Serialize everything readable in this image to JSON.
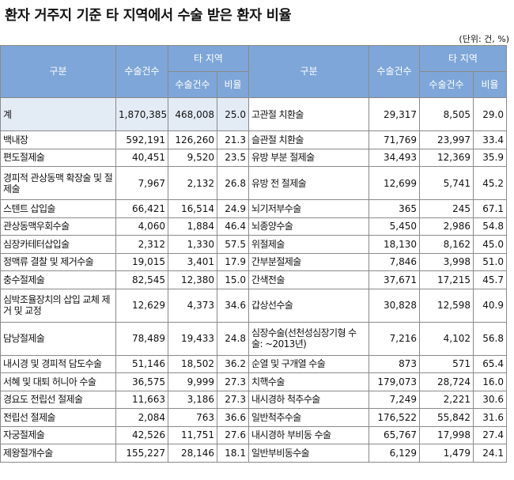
{
  "title": "환자 거주지 기준 타 지역에서 수술 받은 환자 비율",
  "unit": "(단위: 건, %)",
  "headers": {
    "category": "구분",
    "count": "수술건수",
    "other_region_top": "타 지역",
    "other_region_bottom": "수술건수",
    "ratio": "비율"
  },
  "left_rows": [
    {
      "name": "계",
      "count": "1,870,385",
      "other": "468,008",
      "ratio": "25.0"
    },
    {
      "name": "백내장",
      "count": "592,191",
      "other": "126,260",
      "ratio": "21.3"
    },
    {
      "name": "편도절제술",
      "count": "40,451",
      "other": "9,520",
      "ratio": "23.5"
    },
    {
      "name": "경피적 관상동맥 확장술 및 절제술",
      "count": "7,967",
      "other": "2,132",
      "ratio": "26.8"
    },
    {
      "name": "스텐트 삽입술",
      "count": "66,421",
      "other": "16,514",
      "ratio": "24.9"
    },
    {
      "name": "관상동맥우회수술",
      "count": "4,060",
      "other": "1,884",
      "ratio": "46.4"
    },
    {
      "name": "심장카테터삽입술",
      "count": "2,312",
      "other": "1,330",
      "ratio": "57.5"
    },
    {
      "name": "정맥류 결찰 및 제거수술",
      "count": "19,015",
      "other": "3,401",
      "ratio": "17.9"
    },
    {
      "name": "충수절제술",
      "count": "82,545",
      "other": "12,380",
      "ratio": "15.0"
    },
    {
      "name": "심박조율장치의 삽입 교체 제거 및 교정",
      "count": "12,629",
      "other": "4,373",
      "ratio": "34.6"
    },
    {
      "name": "담낭절제술",
      "count": "78,489",
      "other": "19,433",
      "ratio": "24.8"
    },
    {
      "name": "내시경 및 경피적 담도수술",
      "count": "51,146",
      "other": "18,502",
      "ratio": "36.2"
    },
    {
      "name": "서혜 및 대퇴 허니아 수술",
      "count": "36,575",
      "other": "9,999",
      "ratio": "27.3"
    },
    {
      "name": "경요도 전립선 절제술",
      "count": "11,663",
      "other": "3,186",
      "ratio": "27.3"
    },
    {
      "name": "전립선 절제술",
      "count": "2,084",
      "other": "763",
      "ratio": "36.6"
    },
    {
      "name": "자궁절제술",
      "count": "42,526",
      "other": "11,751",
      "ratio": "27.6"
    },
    {
      "name": "제왕절개수술",
      "count": "155,227",
      "other": "28,146",
      "ratio": "18.1"
    }
  ],
  "right_rows": [
    {
      "name": "고관절 치환술",
      "count": "29,317",
      "other": "8,505",
      "ratio": "29.0"
    },
    {
      "name": "슬관절 치환술",
      "count": "71,769",
      "other": "23,997",
      "ratio": "33.4"
    },
    {
      "name": "유방 부분 절제술",
      "count": "34,493",
      "other": "12,369",
      "ratio": "35.9"
    },
    {
      "name": "유방 전 절제술",
      "count": "12,699",
      "other": "5,741",
      "ratio": "45.2"
    },
    {
      "name": "뇌기저부수술",
      "count": "365",
      "other": "245",
      "ratio": "67.1"
    },
    {
      "name": "뇌종양수술",
      "count": "5,450",
      "other": "2,986",
      "ratio": "54.8"
    },
    {
      "name": "위절제술",
      "count": "18,130",
      "other": "8,162",
      "ratio": "45.0"
    },
    {
      "name": "간부분절제술",
      "count": "7,846",
      "other": "3,998",
      "ratio": "51.0"
    },
    {
      "name": "간색전술",
      "count": "37,671",
      "other": "17,215",
      "ratio": "45.7"
    },
    {
      "name": "갑상선수술",
      "count": "30,828",
      "other": "12,598",
      "ratio": "40.9"
    },
    {
      "name": "심장수술(선천성심장기형 수술: ~2013년)",
      "count": "7,216",
      "other": "4,102",
      "ratio": "56.8"
    },
    {
      "name": "순열 및 구개열 수술",
      "count": "873",
      "other": "571",
      "ratio": "65.4"
    },
    {
      "name": "치핵수술",
      "count": "179,073",
      "other": "28,724",
      "ratio": "16.0"
    },
    {
      "name": "내시경하 척추수술",
      "count": "7,249",
      "other": "2,221",
      "ratio": "30.6"
    },
    {
      "name": "일반척추수술",
      "count": "176,522",
      "other": "55,842",
      "ratio": "31.6"
    },
    {
      "name": "내시경하 부비동 수술",
      "count": "65,767",
      "other": "17,998",
      "ratio": "27.4"
    },
    {
      "name": "일반부비동수술",
      "count": "6,129",
      "other": "1,479",
      "ratio": "24.1"
    }
  ]
}
